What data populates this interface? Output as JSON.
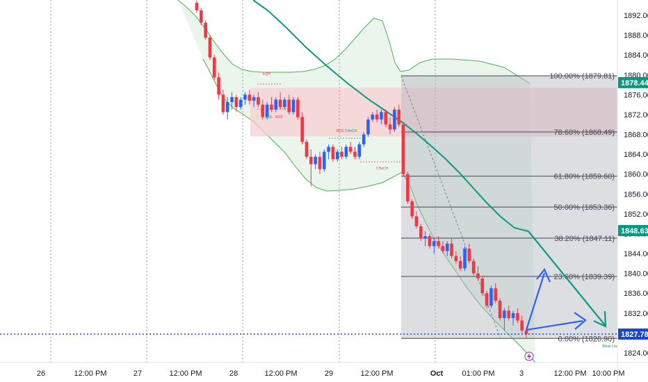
{
  "colors": {
    "up": "#2962ff",
    "down": "#f23645",
    "ma": "#089981",
    "band": "#4caf50",
    "band_fill": "#e8f5e9",
    "zone": "#f8cdd2",
    "fib_box": "#b2b5be",
    "fib_line": "#434651",
    "price_line": "#1848cc",
    "arrow_blue": "#2962ff",
    "arrow_green": "#089981",
    "tag_green": "#089981",
    "tag_blue": "#1848cc",
    "grid": "#9598a1"
  },
  "y_axis": {
    "ticks": [
      "1892.00",
      "1888.00",
      "1884.00",
      "1880.00",
      "1876.00",
      "1872.00",
      "1868.00",
      "1864.00",
      "1860.00",
      "1856.00",
      "1852.00",
      "1848.00",
      "1844.00",
      "1840.00",
      "1836.00",
      "1832.00",
      "1828.00",
      "1824.00"
    ],
    "tick_values": [
      1892,
      1888,
      1884,
      1880,
      1876,
      1872,
      1868,
      1864,
      1860,
      1856,
      1852,
      1848,
      1844,
      1840,
      1836,
      1832,
      1828,
      1824
    ]
  },
  "x_axis": {
    "labels": [
      "26",
      "12:00 PM",
      "27",
      "12:00 PM",
      "28",
      "12:00 PM",
      "29",
      "12:00 PM",
      "Oct",
      "01:00 PM",
      "3",
      "12:00 PM",
      "10:00 PM"
    ],
    "bold": [
      false,
      false,
      false,
      false,
      false,
      false,
      false,
      false,
      true,
      false,
      false,
      false,
      false
    ]
  },
  "price_tags": [
    {
      "text": "1878.44",
      "value": 1878.44,
      "color": "#089981"
    },
    {
      "text": "1848.63",
      "value": 1848.63,
      "color": "#089981"
    },
    {
      "text": "1827.78",
      "value": 1827.78,
      "color": "#1848cc"
    }
  ],
  "fib_levels": [
    {
      "label": "100.00% (1879.81)",
      "value": 1879.81
    },
    {
      "label": "78.60% (1868.49)",
      "value": 1868.49
    },
    {
      "label": "61.80% (1859.60)",
      "value": 1859.6
    },
    {
      "label": "50.00% (1853.36)",
      "value": 1853.36
    },
    {
      "label": "38.20% (1847.11)",
      "value": 1847.11
    },
    {
      "label": "23.60% (1839.39)",
      "value": 1839.39
    },
    {
      "label": "0.00% (1826.90)",
      "value": 1826.9
    }
  ],
  "supply_zone": {
    "top": 1877.4,
    "bottom": 1867.6
  },
  "smc_labels": [
    {
      "text": "EQH",
      "value": 1880.5,
      "color": "#f23645"
    },
    {
      "text": "EQL",
      "value": 1870.5,
      "color": "#089981"
    },
    {
      "text": "BOS",
      "value": 1870.5,
      "color": "#f23645"
    },
    {
      "text": "BOS",
      "value": 1869.0,
      "color": "#f23645"
    },
    {
      "text": "CHoCH",
      "value": 1869.0,
      "color": "#089981"
    },
    {
      "text": "CHoCH",
      "value": 1861.0,
      "color": "#f23645"
    },
    {
      "text": "Weak Low",
      "value": 1825.6,
      "color": "#089981"
    }
  ],
  "chart_data": {
    "type": "candlestick",
    "ylim": [
      1822,
      1895
    ],
    "series": [
      {
        "name": "",
        "ohlc": [
          [
            1894.5,
            1895.0,
            1892.5,
            1893.0
          ],
          [
            1893.0,
            1893.5,
            1890.0,
            1890.5
          ],
          [
            1890.5,
            1891.0,
            1887.0,
            1887.5
          ],
          [
            1887.5,
            1888.0,
            1883.0,
            1883.5
          ],
          [
            1883.5,
            1884.0,
            1879.0,
            1879.5
          ],
          [
            1879.5,
            1880.5,
            1875.0,
            1876.0
          ],
          [
            1876.0,
            1877.0,
            1872.0,
            1872.5
          ],
          [
            1872.5,
            1875.5,
            1871.0,
            1874.5
          ],
          [
            1874.5,
            1876.5,
            1873.0,
            1875.5
          ],
          [
            1875.5,
            1876.0,
            1872.5,
            1873.5
          ],
          [
            1873.5,
            1875.5,
            1873.0,
            1875.0
          ],
          [
            1875.0,
            1876.5,
            1874.0,
            1876.0
          ],
          [
            1876.0,
            1877.0,
            1874.0,
            1874.8
          ],
          [
            1874.8,
            1876.0,
            1873.5,
            1875.5
          ],
          [
            1875.5,
            1876.5,
            1873.5,
            1874.0
          ],
          [
            1874.0,
            1875.0,
            1871.0,
            1871.5
          ],
          [
            1871.5,
            1874.5,
            1871.0,
            1874.0
          ],
          [
            1874.0,
            1875.5,
            1872.5,
            1873.0
          ],
          [
            1873.0,
            1875.5,
            1872.5,
            1875.0
          ],
          [
            1875.0,
            1876.5,
            1873.0,
            1873.5
          ],
          [
            1873.5,
            1875.5,
            1873.0,
            1875.0
          ],
          [
            1875.0,
            1876.0,
            1872.0,
            1872.5
          ],
          [
            1872.5,
            1875.5,
            1872.0,
            1875.0
          ],
          [
            1875.0,
            1875.5,
            1871.0,
            1871.5
          ],
          [
            1871.5,
            1872.5,
            1866.0,
            1866.5
          ],
          [
            1866.5,
            1867.0,
            1863.0,
            1863.5
          ],
          [
            1863.5,
            1865.0,
            1857.5,
            1862.0
          ],
          [
            1862.0,
            1864.0,
            1861.0,
            1863.5
          ],
          [
            1863.5,
            1864.5,
            1860.0,
            1861.0
          ],
          [
            1861.0,
            1865.0,
            1860.5,
            1864.5
          ],
          [
            1864.5,
            1866.0,
            1863.0,
            1865.5
          ],
          [
            1865.5,
            1866.0,
            1862.5,
            1863.0
          ],
          [
            1863.0,
            1865.0,
            1862.5,
            1864.5
          ],
          [
            1864.5,
            1865.5,
            1863.0,
            1863.5
          ],
          [
            1863.5,
            1866.0,
            1863.0,
            1865.5
          ],
          [
            1865.5,
            1866.5,
            1864.0,
            1864.5
          ],
          [
            1864.5,
            1865.5,
            1863.0,
            1863.5
          ],
          [
            1863.5,
            1866.5,
            1863.0,
            1866.0
          ],
          [
            1866.0,
            1868.5,
            1865.5,
            1868.0
          ],
          [
            1868.0,
            1871.5,
            1867.5,
            1871.0
          ],
          [
            1871.0,
            1872.5,
            1870.5,
            1872.0
          ],
          [
            1872.0,
            1873.0,
            1870.5,
            1871.0
          ],
          [
            1871.0,
            1873.0,
            1870.0,
            1872.5
          ],
          [
            1872.5,
            1873.0,
            1869.5,
            1870.0
          ],
          [
            1870.0,
            1871.5,
            1868.0,
            1869.0
          ],
          [
            1869.0,
            1873.5,
            1868.5,
            1873.0
          ],
          [
            1873.0,
            1874.0,
            1869.5,
            1870.0
          ],
          [
            1870.0,
            1870.5,
            1859.5,
            1860.0
          ],
          [
            1860.0,
            1860.5,
            1854.0,
            1854.5
          ],
          [
            1854.5,
            1855.0,
            1851.0,
            1851.5
          ],
          [
            1851.5,
            1852.5,
            1849.0,
            1849.5
          ],
          [
            1849.5,
            1850.0,
            1846.5,
            1847.0
          ],
          [
            1847.0,
            1848.5,
            1845.5,
            1847.5
          ],
          [
            1847.5,
            1848.0,
            1845.0,
            1845.5
          ],
          [
            1845.5,
            1847.0,
            1844.0,
            1846.5
          ],
          [
            1846.5,
            1847.5,
            1845.0,
            1845.5
          ],
          [
            1845.5,
            1846.5,
            1844.0,
            1844.5
          ],
          [
            1844.5,
            1846.5,
            1843.5,
            1846.0
          ],
          [
            1846.0,
            1847.0,
            1843.0,
            1843.5
          ],
          [
            1843.5,
            1844.5,
            1842.0,
            1842.5
          ],
          [
            1842.5,
            1843.5,
            1840.5,
            1841.0
          ],
          [
            1841.0,
            1845.5,
            1840.5,
            1845.0
          ],
          [
            1845.0,
            1846.0,
            1842.0,
            1842.5
          ],
          [
            1842.5,
            1843.0,
            1839.5,
            1840.0
          ],
          [
            1840.0,
            1841.5,
            1838.5,
            1839.0
          ],
          [
            1839.0,
            1839.5,
            1835.5,
            1836.0
          ],
          [
            1836.0,
            1836.5,
            1833.0,
            1833.5
          ],
          [
            1833.5,
            1837.5,
            1833.0,
            1837.0
          ],
          [
            1837.0,
            1838.0,
            1834.0,
            1834.5
          ],
          [
            1834.5,
            1835.0,
            1830.5,
            1831.0
          ],
          [
            1831.0,
            1833.0,
            1828.5,
            1832.5
          ],
          [
            1832.5,
            1833.5,
            1830.5,
            1831.0
          ],
          [
            1831.0,
            1832.5,
            1829.5,
            1832.0
          ],
          [
            1832.0,
            1833.0,
            1830.0,
            1830.5
          ],
          [
            1830.5,
            1831.5,
            1828.0,
            1828.5
          ],
          [
            1828.5,
            1829.0,
            1827.0,
            1827.8
          ]
        ]
      },
      {
        "name": "",
        "type": "line",
        "values": [
          1896,
          1893,
          1890,
          1887,
          1884,
          1881.5,
          1879,
          1876.5,
          1874.5,
          1872.5,
          1870.5,
          1868.5,
          1866.5,
          1865,
          1862.5,
          1860,
          1857.5,
          1855,
          1852.5,
          1849,
          1846,
          1843,
          1838,
          1833
        ]
      },
      {
        "name": "",
        "type": "line",
        "values": [
          1895,
          1892,
          1888,
          1885,
          1882,
          1881,
          1881.5,
          1881,
          1879.5,
          1876.5,
          1877,
          1880.5,
          1881.3,
          1881.5,
          1881.5,
          1881.1,
          1880.6
        ]
      },
      {
        "name": "",
        "type": "line",
        "values": [
          1882,
          1877,
          1873,
          1869,
          1866,
          1863,
          1860,
          1858,
          1857.5,
          1858,
          1861,
          1857,
          1852,
          1847,
          1842,
          1838,
          1834,
          1831,
          1828,
          1825,
          1822
        ]
      }
    ]
  }
}
